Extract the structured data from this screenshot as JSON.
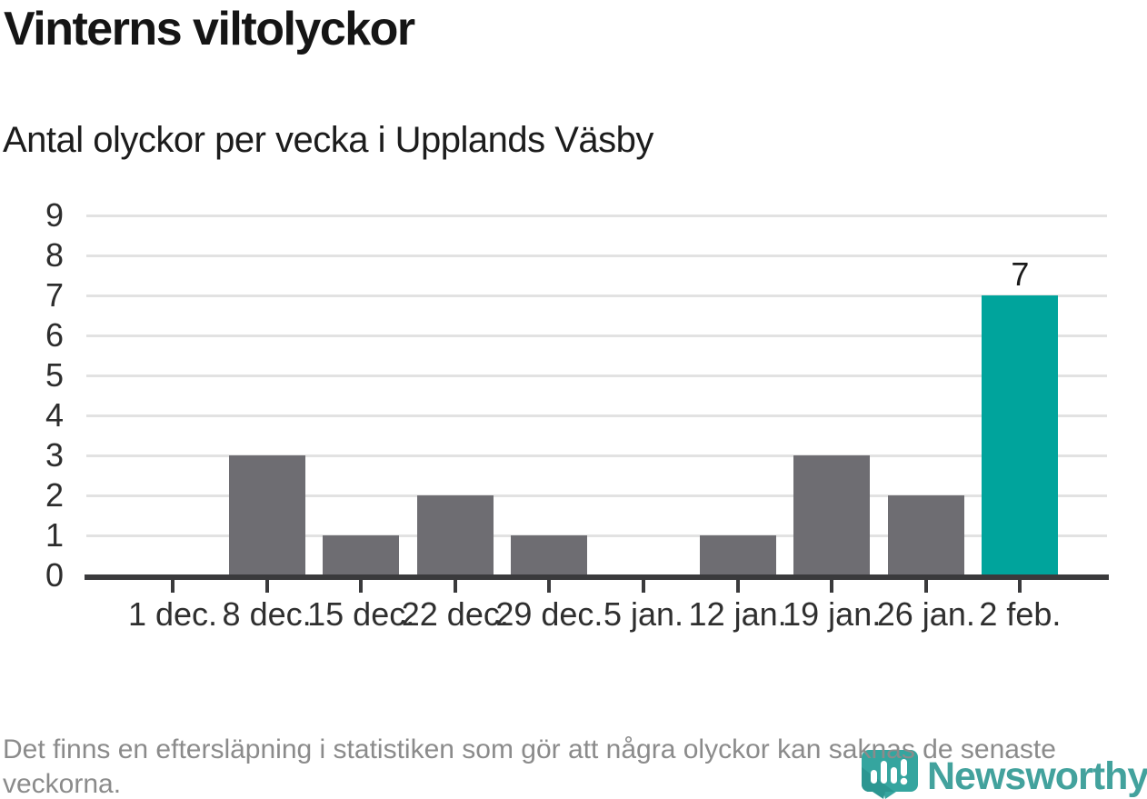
{
  "header": {
    "title": "Vinterns viltolyckor",
    "subtitle": "Antal olyckor per vecka i Upplands Väsby"
  },
  "footer": {
    "note": "Det finns en eftersläpning i statistiken som gör att några olyckor kan saknas de senaste veckorna."
  },
  "logo": {
    "name": "Newsworthy",
    "icon": "newsworthy-bubble-chart-icon"
  },
  "colors": {
    "bar_default": "#6e6d72",
    "bar_highlight": "#00a49c",
    "axis": "#3a3a3c",
    "grid": "#e2e2e2",
    "title_text": "#151515",
    "footnote_text": "#8b8b8b",
    "logo_teal": "#43a29d",
    "logo_icon_teal": "#35a59f",
    "logo_icon_shade": "#2c9691"
  },
  "chart_data": {
    "type": "bar",
    "title": "Vinterns viltolyckor",
    "subtitle": "Antal olyckor per vecka i Upplands Väsby",
    "categories": [
      "1 dec.",
      "8 dec.",
      "15 dec.",
      "22 dec.",
      "29 dec.",
      "5 jan.",
      "12 jan.",
      "19 jan.",
      "26 jan.",
      "2 feb."
    ],
    "values": [
      0,
      3,
      1,
      2,
      1,
      0,
      1,
      3,
      2,
      7
    ],
    "highlight_index": 9,
    "data_labels": [
      {
        "index": 9,
        "text": "7"
      }
    ],
    "xlabel": "",
    "ylabel": "",
    "ylim": [
      0,
      9
    ],
    "yticks": [
      0,
      1,
      2,
      3,
      4,
      5,
      6,
      7,
      8,
      9
    ],
    "grid": "horizontal",
    "legend": "none"
  }
}
